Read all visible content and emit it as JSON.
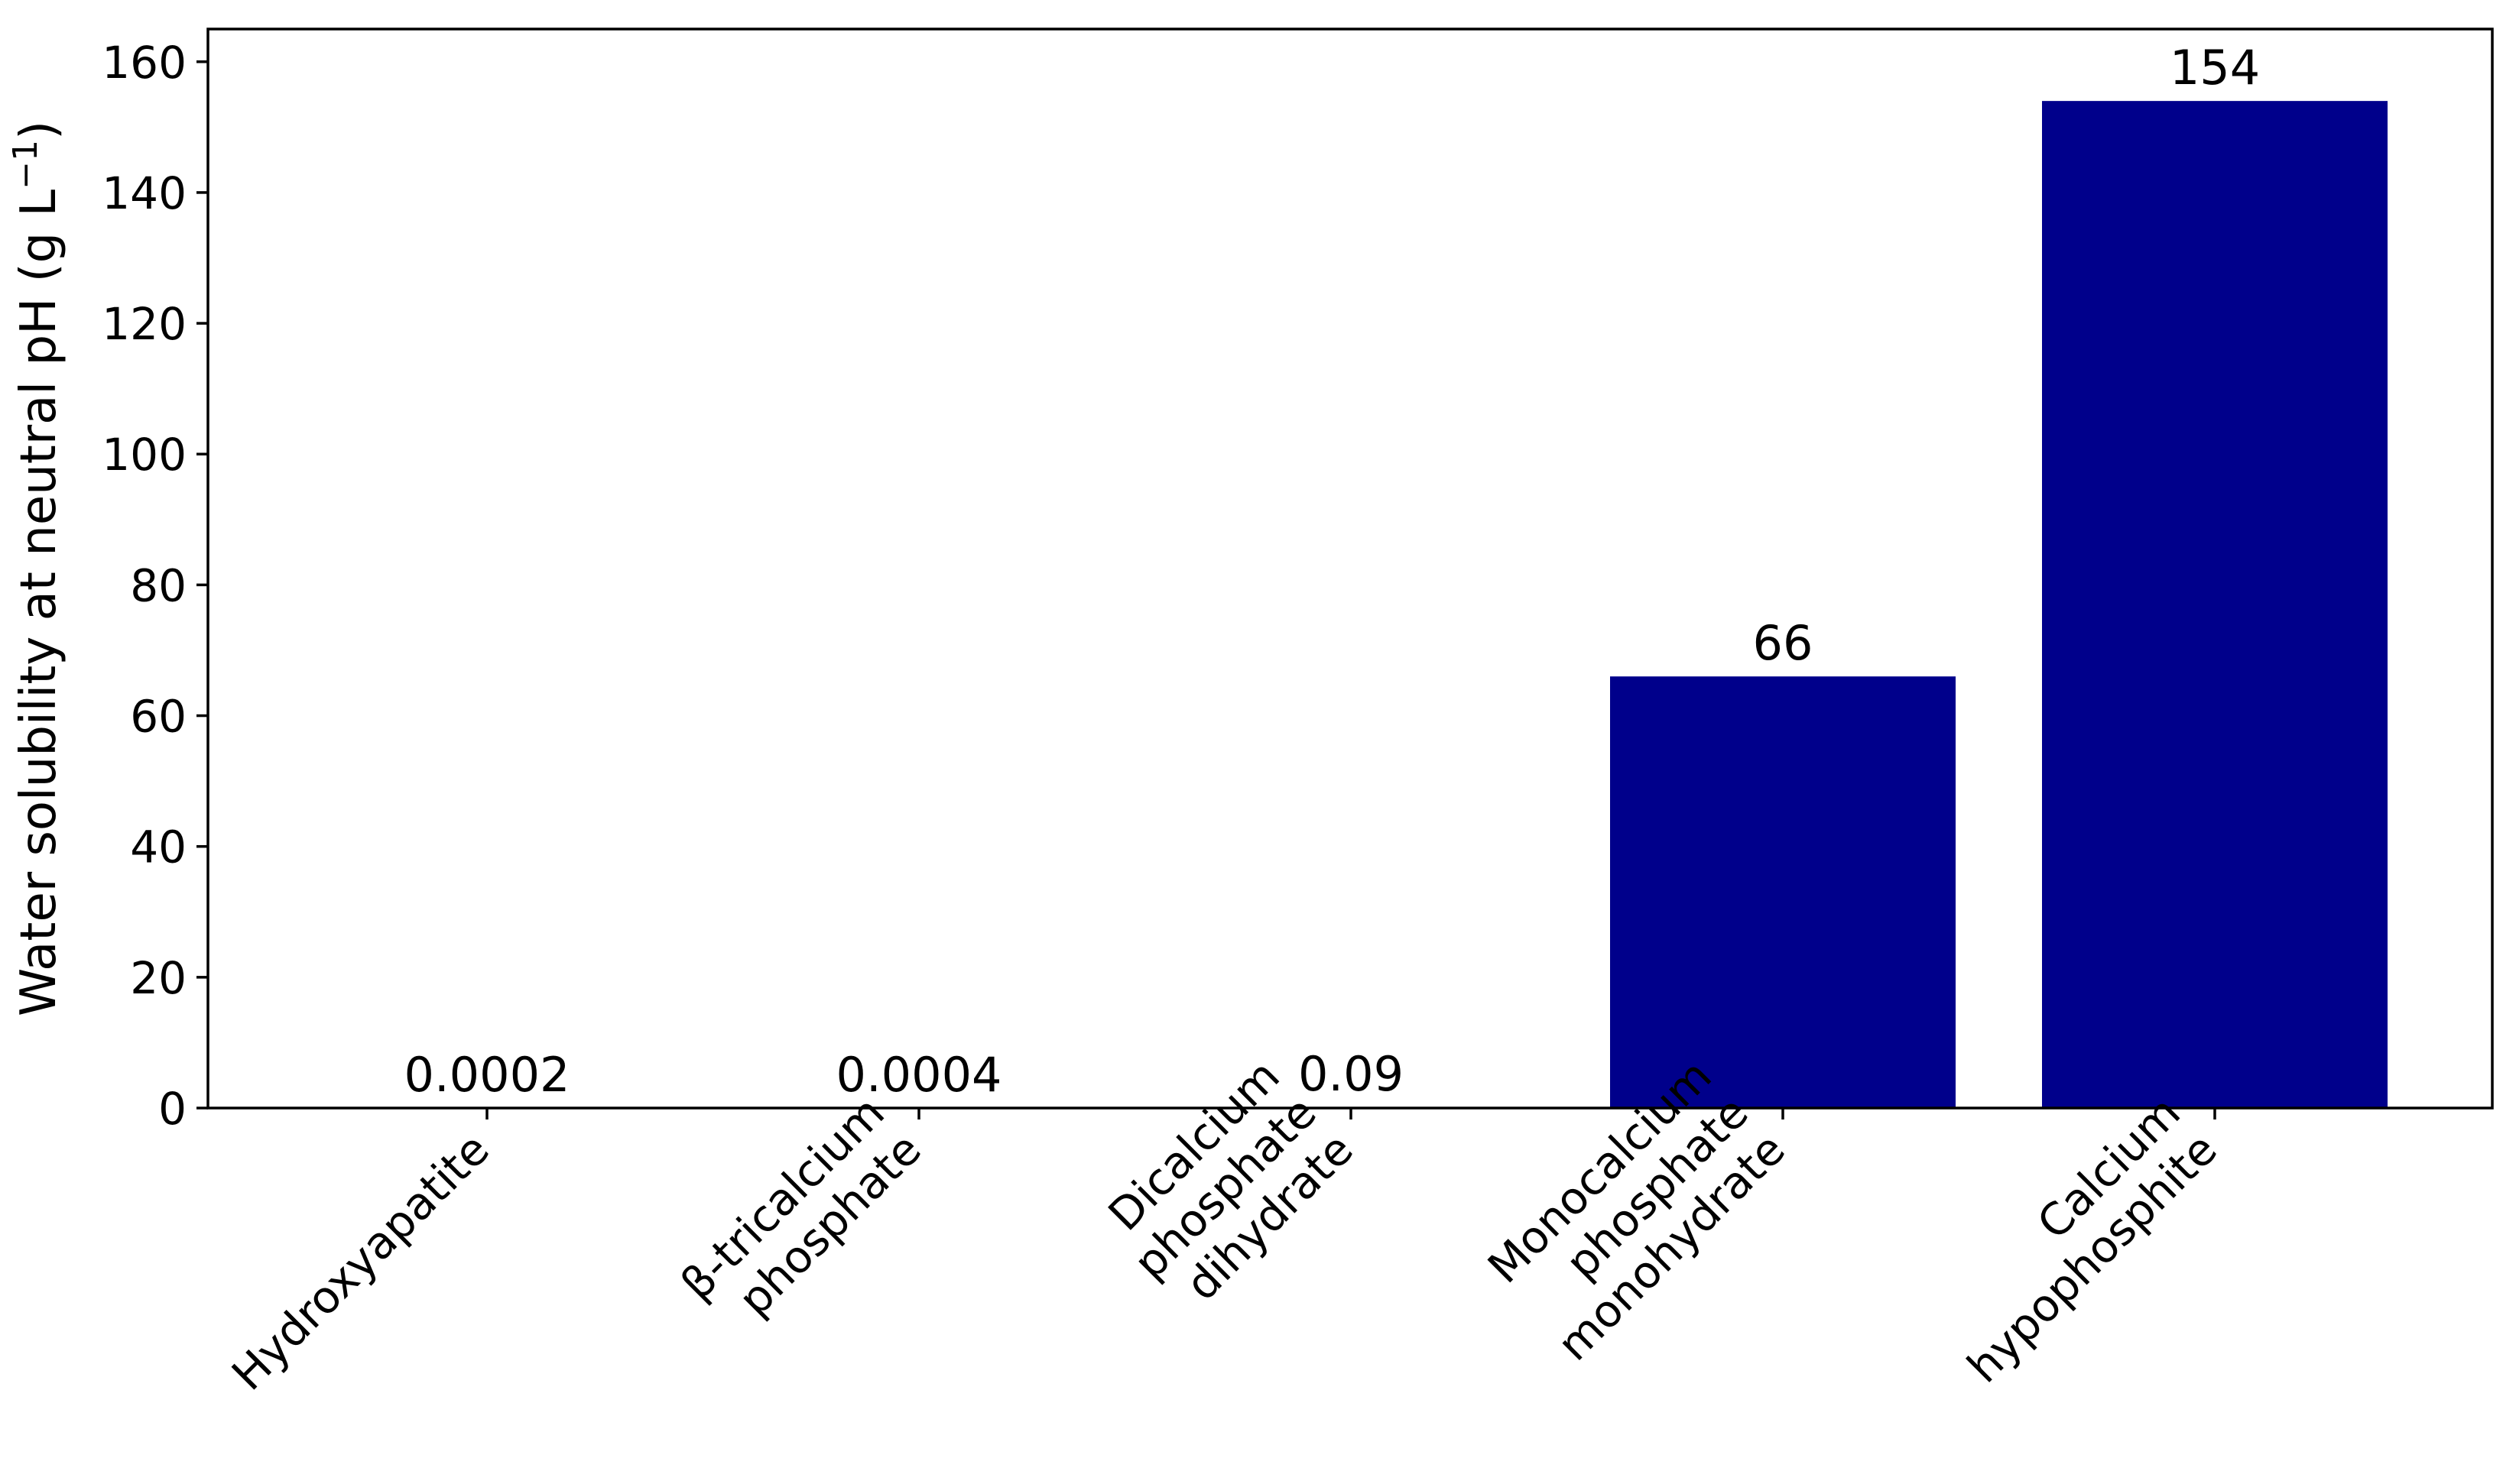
{
  "chart_data": {
    "type": "bar",
    "categories": [
      "Hydroxyapatite",
      "β-tricalcium\nphosphate",
      "Dicalcium\nphosphate\ndihydrate",
      "Monocalcium\nphosphate\nmonohydrate",
      "Calcium\nhypophosphite"
    ],
    "values": [
      0.0002,
      0.0004,
      0.09,
      66,
      154
    ],
    "data_labels": [
      "0.0002",
      "0.0004",
      "0.09",
      "66",
      "154"
    ],
    "title": "",
    "xlabel": "",
    "ylabel": "Water solubility at neutral pH (g L",
    "ylabel_superscript": "−1",
    "ylabel_close": ")",
    "ylim": [
      0,
      165
    ],
    "yticks": [
      0,
      20,
      40,
      60,
      80,
      100,
      120,
      140,
      160
    ],
    "grid": false,
    "legend": "none",
    "bar_color": "#00008b"
  }
}
